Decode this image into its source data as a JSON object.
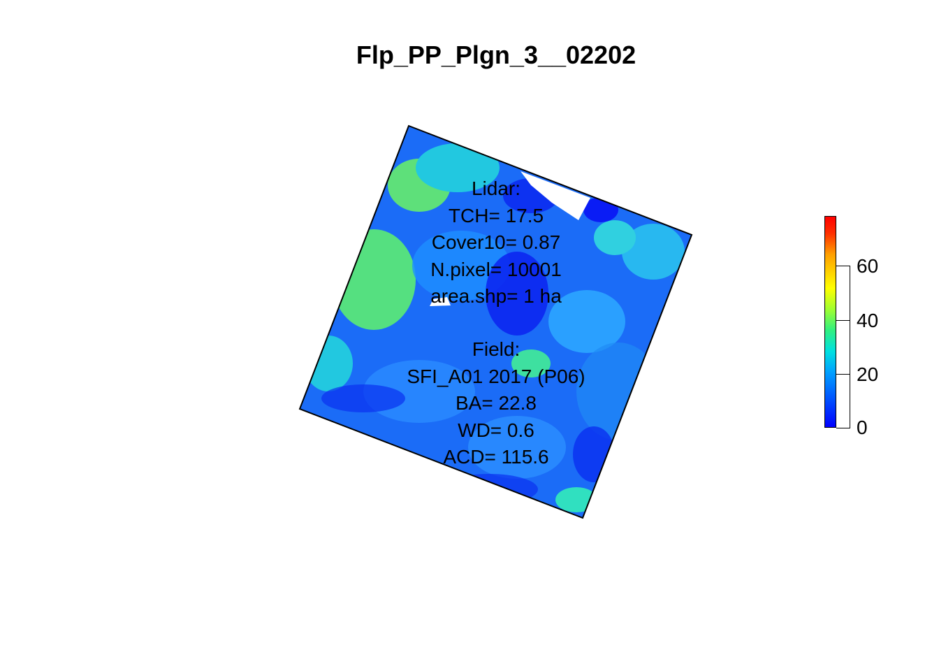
{
  "title": "Flp_PP_Plgn_3__02202",
  "lidar": {
    "heading": "Lidar:",
    "tch": "TCH= 17.5",
    "cover10": "Cover10= 0.87",
    "npixel": "N.pixel= 10001",
    "area": "area.shp= 1 ha"
  },
  "field": {
    "heading": "Field:",
    "plot": "SFI_A01 2017 (P06)",
    "ba": "BA= 22.8",
    "wd": "WD= 0.6",
    "acd": "ACD= 115.6"
  },
  "legend": {
    "ticks": [
      "0",
      "20",
      "40",
      "60"
    ],
    "colors": [
      "#0000ff",
      "#00a0ff",
      "#30f080",
      "#ffff00",
      "#ff0000"
    ]
  }
}
